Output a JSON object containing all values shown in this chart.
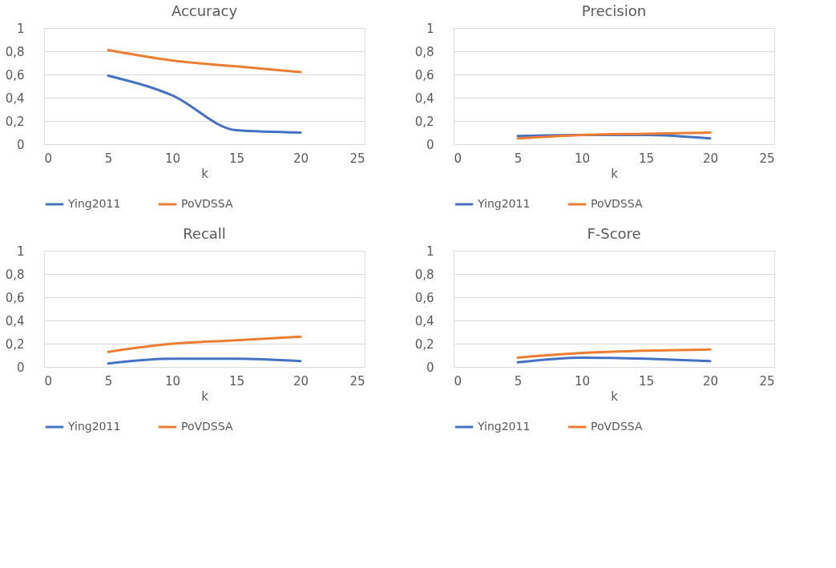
{
  "chart_data": [
    {
      "type": "line",
      "title": "Accuracy",
      "xlabel": "k",
      "x": [
        5,
        10,
        15,
        20
      ],
      "series": [
        {
          "name": "Ying2011",
          "color": "#4472c4",
          "values": [
            0.59,
            0.42,
            0.12,
            0.1
          ]
        },
        {
          "name": "PoVDSSA",
          "color": "#ed7d31",
          "values": [
            0.81,
            0.72,
            0.67,
            0.62
          ]
        }
      ],
      "xlim": [
        0,
        25
      ],
      "xticks": [
        0,
        5,
        10,
        15,
        20,
        25
      ],
      "ylim": [
        0,
        1
      ],
      "yticks": [
        0,
        {
          "value": 0.2,
          "label": "0,2"
        },
        {
          "value": 0.4,
          "label": "0,4"
        },
        {
          "value": 0.6,
          "label": "0,6"
        },
        {
          "value": 0.8,
          "label": "0,8"
        },
        1
      ],
      "grid": "y",
      "legend": "bottom",
      "marker": "none",
      "line_style": "solid"
    },
    {
      "type": "line",
      "title": "Precision",
      "xlabel": "k",
      "x": [
        5,
        10,
        15,
        20
      ],
      "series": [
        {
          "name": "Ying2011",
          "color": "#4472c4",
          "values": [
            0.07,
            0.08,
            0.08,
            0.05
          ]
        },
        {
          "name": "PoVDSSA",
          "color": "#ed7d31",
          "values": [
            0.05,
            0.08,
            0.09,
            0.1
          ]
        }
      ],
      "xlim": [
        0,
        25
      ],
      "xticks": [
        0,
        5,
        10,
        15,
        20,
        25
      ],
      "ylim": [
        0,
        1
      ],
      "yticks": [
        0,
        {
          "value": 0.2,
          "label": "0,2"
        },
        {
          "value": 0.4,
          "label": "0,4"
        },
        {
          "value": 0.6,
          "label": "0,6"
        },
        {
          "value": 0.8,
          "label": "0,8"
        },
        1
      ],
      "grid": "y",
      "legend": "bottom",
      "marker": "none",
      "line_style": "solid"
    },
    {
      "type": "line",
      "title": "Recall",
      "xlabel": "k",
      "x": [
        5,
        10,
        15,
        20
      ],
      "series": [
        {
          "name": "Ying2011",
          "color": "#4472c4",
          "values": [
            0.03,
            0.07,
            0.07,
            0.05
          ]
        },
        {
          "name": "PoVDSSA",
          "color": "#ed7d31",
          "values": [
            0.13,
            0.2,
            0.23,
            0.26
          ]
        }
      ],
      "xlim": [
        0,
        25
      ],
      "xticks": [
        0,
        5,
        10,
        15,
        20,
        25
      ],
      "ylim": [
        0,
        1
      ],
      "yticks": [
        0,
        {
          "value": 0.2,
          "label": "0,2"
        },
        {
          "value": 0.4,
          "label": "0,4"
        },
        {
          "value": 0.6,
          "label": "0,6"
        },
        {
          "value": 0.8,
          "label": "0,8"
        },
        1
      ],
      "grid": "y",
      "legend": "bottom",
      "marker": "none",
      "line_style": "solid"
    },
    {
      "type": "line",
      "title": "F-Score",
      "xlabel": "k",
      "x": [
        5,
        10,
        15,
        20
      ],
      "series": [
        {
          "name": "Ying2011",
          "color": "#4472c4",
          "values": [
            0.04,
            0.08,
            0.07,
            0.05
          ]
        },
        {
          "name": "PoVDSSA",
          "color": "#ed7d31",
          "values": [
            0.08,
            0.12,
            0.14,
            0.15
          ]
        }
      ],
      "xlim": [
        0,
        25
      ],
      "xticks": [
        0,
        5,
        10,
        15,
        20,
        25
      ],
      "ylim": [
        0,
        1
      ],
      "yticks": [
        0,
        {
          "value": 0.2,
          "label": "0,2"
        },
        {
          "value": 0.4,
          "label": "0,4"
        },
        {
          "value": 0.6,
          "label": "0,6"
        },
        {
          "value": 0.8,
          "label": "0,8"
        },
        1
      ],
      "grid": "y",
      "legend": "bottom",
      "marker": "none",
      "line_style": "solid"
    }
  ]
}
